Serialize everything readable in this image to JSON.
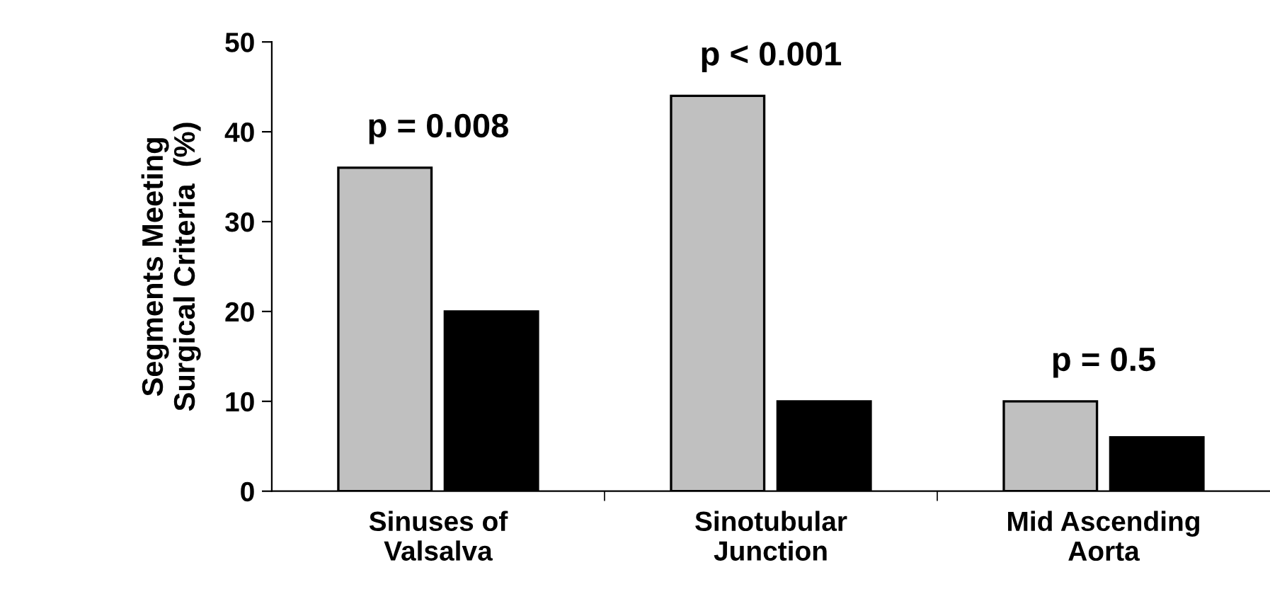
{
  "chart_data": {
    "type": "bar",
    "categories": [
      "Sinuses of\nValsalva",
      "Sinotubular\nJunction",
      "Mid Ascending\nAorta"
    ],
    "series": [
      {
        "color": "#c0c0c0",
        "values": [
          36,
          44,
          10
        ]
      },
      {
        "color": "#000000",
        "values": [
          20,
          10,
          6
        ]
      }
    ],
    "ylabel": "Segments Meeting\nSurgical Criteria  (%)",
    "ylim": [
      0,
      50
    ],
    "yticks": [
      0,
      10,
      20,
      30,
      40,
      50
    ],
    "annotations": [
      {
        "text": "p = 0.008",
        "x": "Sinuses of\nValsalva",
        "y": 36
      },
      {
        "text": "p < 0.001",
        "x": "Sinotubular\nJunction",
        "y": 44
      },
      {
        "text": "p = 0.5",
        "x": "Mid Ascending\nAorta",
        "y": 10
      }
    ],
    "grid": false
  }
}
